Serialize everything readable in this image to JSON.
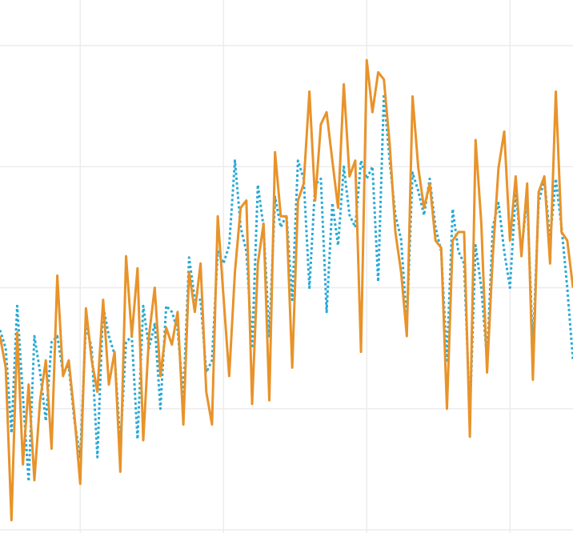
{
  "chart_data": {
    "type": "line",
    "x": [
      0,
      2,
      4,
      6,
      8,
      10,
      12,
      14,
      16,
      18,
      20,
      22,
      24,
      26,
      28,
      30,
      32,
      34,
      36,
      38,
      40,
      42,
      44,
      46,
      48,
      50,
      52,
      54,
      56,
      58,
      60,
      62,
      64,
      66,
      68,
      70,
      72,
      74,
      76,
      78,
      80,
      82,
      84,
      86,
      88,
      90,
      92,
      94,
      96,
      98,
      100,
      102,
      104,
      106,
      108,
      110,
      112,
      114,
      116,
      118,
      120,
      122,
      124,
      126,
      128,
      130,
      132,
      134,
      136,
      138,
      140,
      142,
      144,
      146,
      148,
      150,
      152,
      154,
      156,
      158,
      160,
      162,
      164,
      166,
      168,
      170,
      172,
      174,
      176,
      178,
      180,
      182,
      184,
      186,
      188,
      190,
      192,
      194,
      196,
      198,
      200
    ],
    "series": [
      {
        "color": "#e8932a",
        "line_style": "solid",
        "values": [
          1.6,
          1.34,
          0.08,
          1.63,
          0.54,
          1.2,
          0.41,
          1.07,
          1.4,
          0.67,
          2.1,
          1.27,
          1.4,
          0.94,
          0.38,
          1.83,
          1.4,
          1.14,
          1.9,
          1.2,
          1.47,
          0.48,
          2.26,
          1.6,
          2.16,
          0.74,
          1.6,
          2.0,
          1.27,
          1.67,
          1.53,
          1.8,
          0.87,
          2.13,
          1.8,
          2.2,
          1.14,
          0.87,
          2.59,
          1.93,
          1.27,
          2.13,
          2.66,
          2.72,
          1.04,
          2.2,
          2.53,
          1.07,
          3.12,
          2.59,
          2.59,
          1.34,
          2.72,
          2.86,
          3.62,
          2.72,
          3.35,
          3.45,
          3.05,
          2.66,
          3.68,
          2.92,
          3.05,
          1.47,
          3.88,
          3.45,
          3.78,
          3.72,
          3.19,
          2.46,
          2.13,
          1.6,
          3.58,
          2.99,
          2.66,
          2.86,
          2.39,
          2.33,
          1.0,
          2.39,
          2.46,
          2.46,
          0.77,
          3.22,
          2.53,
          1.3,
          2.26,
          2.99,
          3.29,
          2.39,
          2.92,
          2.26,
          2.86,
          1.24,
          2.79,
          2.92,
          2.2,
          3.62,
          2.46,
          2.39,
          2.0
        ]
      },
      {
        "color": "#29a9d6",
        "line_style": "dotted",
        "values": [
          1.65,
          1.5,
          0.8,
          1.85,
          1.1,
          0.4,
          1.6,
          1.3,
          0.9,
          1.55,
          1.6,
          1.3,
          1.35,
          0.9,
          0.6,
          1.7,
          1.5,
          0.6,
          1.85,
          1.6,
          1.45,
          0.7,
          1.55,
          1.6,
          0.75,
          1.85,
          1.5,
          1.7,
          1.0,
          1.85,
          1.8,
          1.65,
          1.1,
          2.25,
          1.9,
          1.9,
          1.3,
          1.4,
          2.3,
          2.2,
          2.35,
          3.05,
          2.5,
          2.3,
          1.5,
          2.85,
          2.5,
          1.6,
          2.75,
          2.5,
          2.6,
          1.9,
          3.05,
          2.9,
          2.0,
          2.85,
          2.9,
          1.8,
          2.7,
          2.35,
          3.0,
          2.6,
          2.5,
          3.05,
          2.9,
          3.0,
          2.05,
          3.6,
          3.05,
          2.6,
          2.4,
          1.7,
          2.95,
          2.8,
          2.6,
          2.9,
          2.5,
          2.3,
          1.4,
          2.65,
          2.3,
          2.2,
          0.95,
          2.35,
          2.0,
          1.4,
          2.5,
          2.7,
          2.3,
          2.0,
          2.8,
          2.3,
          2.75,
          1.5,
          2.7,
          2.9,
          2.4,
          2.9,
          2.5,
          2.0,
          1.4
        ]
      }
    ],
    "xlim": [
      0,
      200
    ],
    "xticks": [
      28,
      78,
      128,
      178
    ],
    "ylim": [
      0,
      4.4
    ],
    "yticks": [
      0,
      1,
      2,
      3,
      4
    ],
    "grid": true
  }
}
